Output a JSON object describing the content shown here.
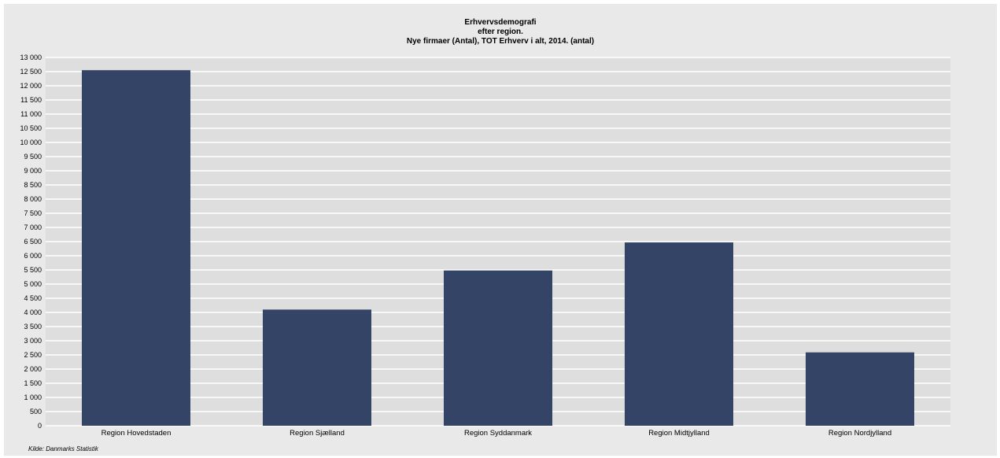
{
  "chart_data": {
    "type": "bar",
    "title": "Erhvervsdemografi",
    "subtitle": [
      "efter region.",
      "Nye firmaer (Antal), TOT Erhverv i alt, 2014. (antal)"
    ],
    "categories": [
      "Region Hovedstaden",
      "Region Sjælland",
      "Region Syddanmark",
      "Region Midtjylland",
      "Region Nordjylland"
    ],
    "values": [
      12550,
      4100,
      5480,
      6470,
      2590
    ],
    "xlabel": "",
    "ylabel": "",
    "ylim": [
      0,
      13000
    ],
    "ytick_step": 500,
    "yticks": [
      "0",
      "500",
      "1 000",
      "1 500",
      "2 000",
      "2 500",
      "3 000",
      "3 500",
      "4 000",
      "4 500",
      "5 000",
      "5 500",
      "6 000",
      "6 500",
      "7 000",
      "7 500",
      "8 000",
      "8 500",
      "9 000",
      "9 500",
      "10 000",
      "10 500",
      "11 000",
      "11 500",
      "12 000",
      "12 500",
      "13 000"
    ],
    "grid": true,
    "legend": "none",
    "colors": {
      "bar": "#334467",
      "plot_background": "#dedede",
      "gridline": "#ffffff",
      "frame_background": "#e9e9e9"
    }
  },
  "source": "Kilde: Danmarks Statistik"
}
